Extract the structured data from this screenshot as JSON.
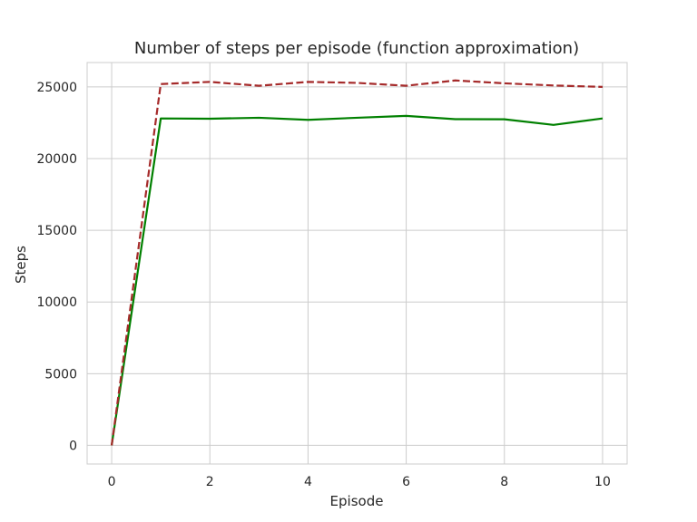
{
  "chart_data": {
    "type": "line",
    "title": "Number of steps per episode (function approximation)",
    "xlabel": "Episode",
    "ylabel": "Steps",
    "x": [
      0,
      1,
      2,
      3,
      4,
      5,
      6,
      7,
      8,
      9,
      10
    ],
    "xlim": [
      -0.5,
      10.5
    ],
    "ylim": [
      -1300,
      26700
    ],
    "xticks": [
      0,
      2,
      4,
      6,
      8,
      10
    ],
    "yticks": [
      0,
      5000,
      10000,
      15000,
      20000,
      25000
    ],
    "grid": true,
    "series": [
      {
        "values": [
          0,
          22800,
          22780,
          22850,
          22700,
          22850,
          22980,
          22750,
          22740,
          22350,
          22800
        ],
        "color": "#008000",
        "style": "solid"
      },
      {
        "values": [
          0,
          25200,
          25350,
          25080,
          25350,
          25280,
          25080,
          25450,
          25250,
          25100,
          25000
        ],
        "color": "#a52a2a",
        "style": "dashed"
      }
    ]
  }
}
